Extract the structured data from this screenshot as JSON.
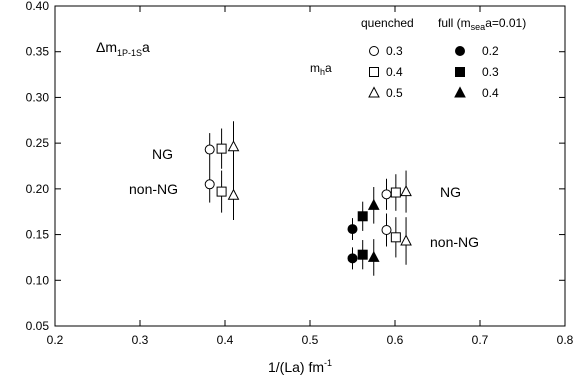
{
  "chart_data": {
    "type": "scatter",
    "xlabel": {
      "base": "1/(La)  fm",
      "sup": "-1"
    },
    "ylabel_inset": {
      "delta": "Δm",
      "sub": "1P-1S",
      "tail": "a"
    },
    "xlim": [
      0.2,
      0.8
    ],
    "ylim": [
      0.05,
      0.4
    ],
    "xticks": [
      "0.2",
      "0.3",
      "0.4",
      "0.5",
      "0.6",
      "0.7",
      "0.8"
    ],
    "yticks": [
      "0.05",
      "0.10",
      "0.15",
      "0.20",
      "0.25",
      "0.30",
      "0.35",
      "0.40"
    ],
    "legend": {
      "mh_label": {
        "base": "m",
        "sub": "h",
        "tail": "a"
      },
      "quenched_title": "quenched",
      "full_title": {
        "pre": "full (m",
        "sub": "sea",
        "post": "a=0.01)"
      },
      "quenched_entries": [
        "0.3",
        "0.4",
        "0.5"
      ],
      "full_entries": [
        "0.2",
        "0.3",
        "0.4"
      ]
    },
    "annotations": {
      "ng_left": "NG",
      "nonng_left": "non-NG",
      "ng_right": "NG",
      "nonng_right": "non-NG"
    },
    "series": [
      {
        "group": "quenched",
        "marker": "circle-open",
        "points": [
          {
            "x": 0.382,
            "y": 0.243,
            "err": 0.018
          },
          {
            "x": 0.382,
            "y": 0.205,
            "err": 0.02
          },
          {
            "x": 0.59,
            "y": 0.194,
            "err": 0.017
          },
          {
            "x": 0.59,
            "y": 0.155,
            "err": 0.018
          }
        ]
      },
      {
        "group": "quenched",
        "marker": "square-open",
        "points": [
          {
            "x": 0.396,
            "y": 0.244,
            "err": 0.022
          },
          {
            "x": 0.396,
            "y": 0.197,
            "err": 0.023
          },
          {
            "x": 0.601,
            "y": 0.196,
            "err": 0.02
          },
          {
            "x": 0.601,
            "y": 0.147,
            "err": 0.022
          }
        ]
      },
      {
        "group": "quenched",
        "marker": "triangle-open",
        "points": [
          {
            "x": 0.41,
            "y": 0.246,
            "err": 0.028
          },
          {
            "x": 0.41,
            "y": 0.193,
            "err": 0.027
          },
          {
            "x": 0.613,
            "y": 0.197,
            "err": 0.023
          },
          {
            "x": 0.613,
            "y": 0.143,
            "err": 0.026
          }
        ]
      },
      {
        "group": "full",
        "marker": "circle-filled",
        "points": [
          {
            "x": 0.55,
            "y": 0.156,
            "err": 0.012
          },
          {
            "x": 0.55,
            "y": 0.124,
            "err": 0.012
          }
        ]
      },
      {
        "group": "full",
        "marker": "square-filled",
        "points": [
          {
            "x": 0.562,
            "y": 0.17,
            "err": 0.016
          },
          {
            "x": 0.562,
            "y": 0.128,
            "err": 0.016
          }
        ]
      },
      {
        "group": "full",
        "marker": "triangle-filled",
        "points": [
          {
            "x": 0.575,
            "y": 0.182,
            "err": 0.02
          },
          {
            "x": 0.575,
            "y": 0.125,
            "err": 0.02
          }
        ]
      }
    ]
  }
}
